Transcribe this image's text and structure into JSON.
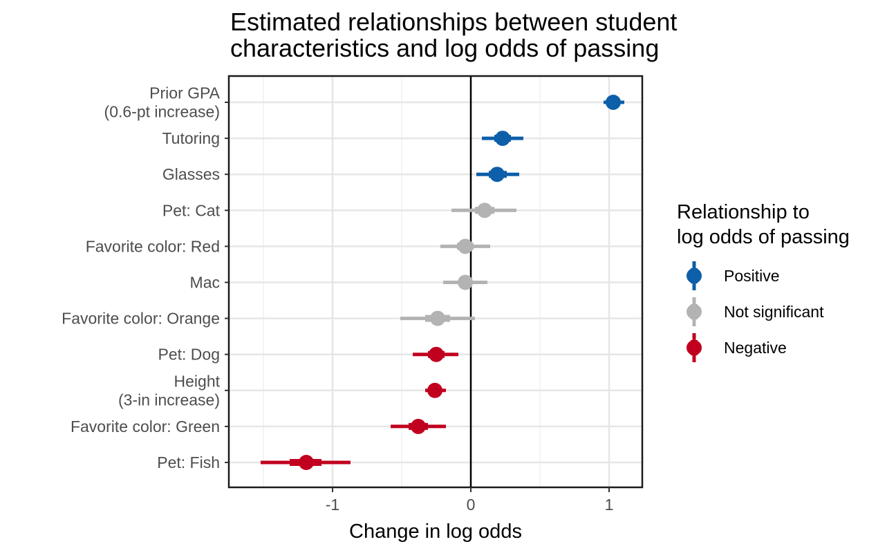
{
  "chart_data": {
    "type": "scatter",
    "title": "Estimated relationships between student characteristics and log odds of passing",
    "title_lines": [
      "Estimated relationships between student",
      "characteristics and log odds of passing"
    ],
    "xlabel": "Change in log odds",
    "ylabel": "",
    "xlim": [
      -1.75,
      1.24
    ],
    "x_ticks": [
      {
        "value": -1,
        "label": "-1"
      },
      {
        "value": 0,
        "label": "0"
      },
      {
        "value": 1,
        "label": "1"
      }
    ],
    "reference_line_x": 0,
    "grid": true,
    "legend": {
      "position": "right",
      "title_lines": [
        "Relationship to",
        "log odds of passing"
      ],
      "entries": [
        {
          "key": "positive",
          "label": "Positive",
          "color": "#0c5fa8"
        },
        {
          "key": "ns",
          "label": "Not significant",
          "color": "#b3b3b3"
        },
        {
          "key": "negative",
          "label": "Negative",
          "color": "#c1001f"
        }
      ]
    },
    "points": [
      {
        "label_lines": [
          "Prior GPA",
          "(0.6-pt increase)"
        ],
        "estimate": 1.03,
        "inner": [
          0.99,
          1.07
        ],
        "outer": [
          0.96,
          1.11
        ],
        "group": "positive"
      },
      {
        "label_lines": [
          "Tutoring"
        ],
        "estimate": 0.23,
        "inner": [
          0.17,
          0.29
        ],
        "outer": [
          0.08,
          0.38
        ],
        "group": "positive"
      },
      {
        "label_lines": [
          "Glasses"
        ],
        "estimate": 0.19,
        "inner": [
          0.13,
          0.26
        ],
        "outer": [
          0.04,
          0.35
        ],
        "group": "positive"
      },
      {
        "label_lines": [
          "Pet: Cat"
        ],
        "estimate": 0.1,
        "inner": [
          0.03,
          0.17
        ],
        "outer": [
          -0.14,
          0.33
        ],
        "group": "ns"
      },
      {
        "label_lines": [
          "Favorite color: Red"
        ],
        "estimate": -0.04,
        "inner": [
          -0.1,
          0.02
        ],
        "outer": [
          -0.22,
          0.14
        ],
        "group": "ns"
      },
      {
        "label_lines": [
          "Mac"
        ],
        "estimate": -0.04,
        "inner": [
          -0.09,
          0.01
        ],
        "outer": [
          -0.2,
          0.12
        ],
        "group": "ns"
      },
      {
        "label_lines": [
          "Favorite color: Orange"
        ],
        "estimate": -0.24,
        "inner": [
          -0.33,
          -0.15
        ],
        "outer": [
          -0.51,
          0.03
        ],
        "group": "ns"
      },
      {
        "label_lines": [
          "Pet: Dog"
        ],
        "estimate": -0.25,
        "inner": [
          -0.31,
          -0.19
        ],
        "outer": [
          -0.42,
          -0.09
        ],
        "group": "negative"
      },
      {
        "label_lines": [
          "Height",
          "(3-in increase)"
        ],
        "estimate": -0.26,
        "inner": [
          -0.3,
          -0.21
        ],
        "outer": [
          -0.33,
          -0.18
        ],
        "group": "negative"
      },
      {
        "label_lines": [
          "Favorite color: Green"
        ],
        "estimate": -0.38,
        "inner": [
          -0.45,
          -0.31
        ],
        "outer": [
          -0.58,
          -0.18
        ],
        "group": "negative"
      },
      {
        "label_lines": [
          "Pet: Fish"
        ],
        "estimate": -1.19,
        "inner": [
          -1.31,
          -1.08
        ],
        "outer": [
          -1.52,
          -0.87
        ],
        "group": "negative"
      }
    ]
  }
}
